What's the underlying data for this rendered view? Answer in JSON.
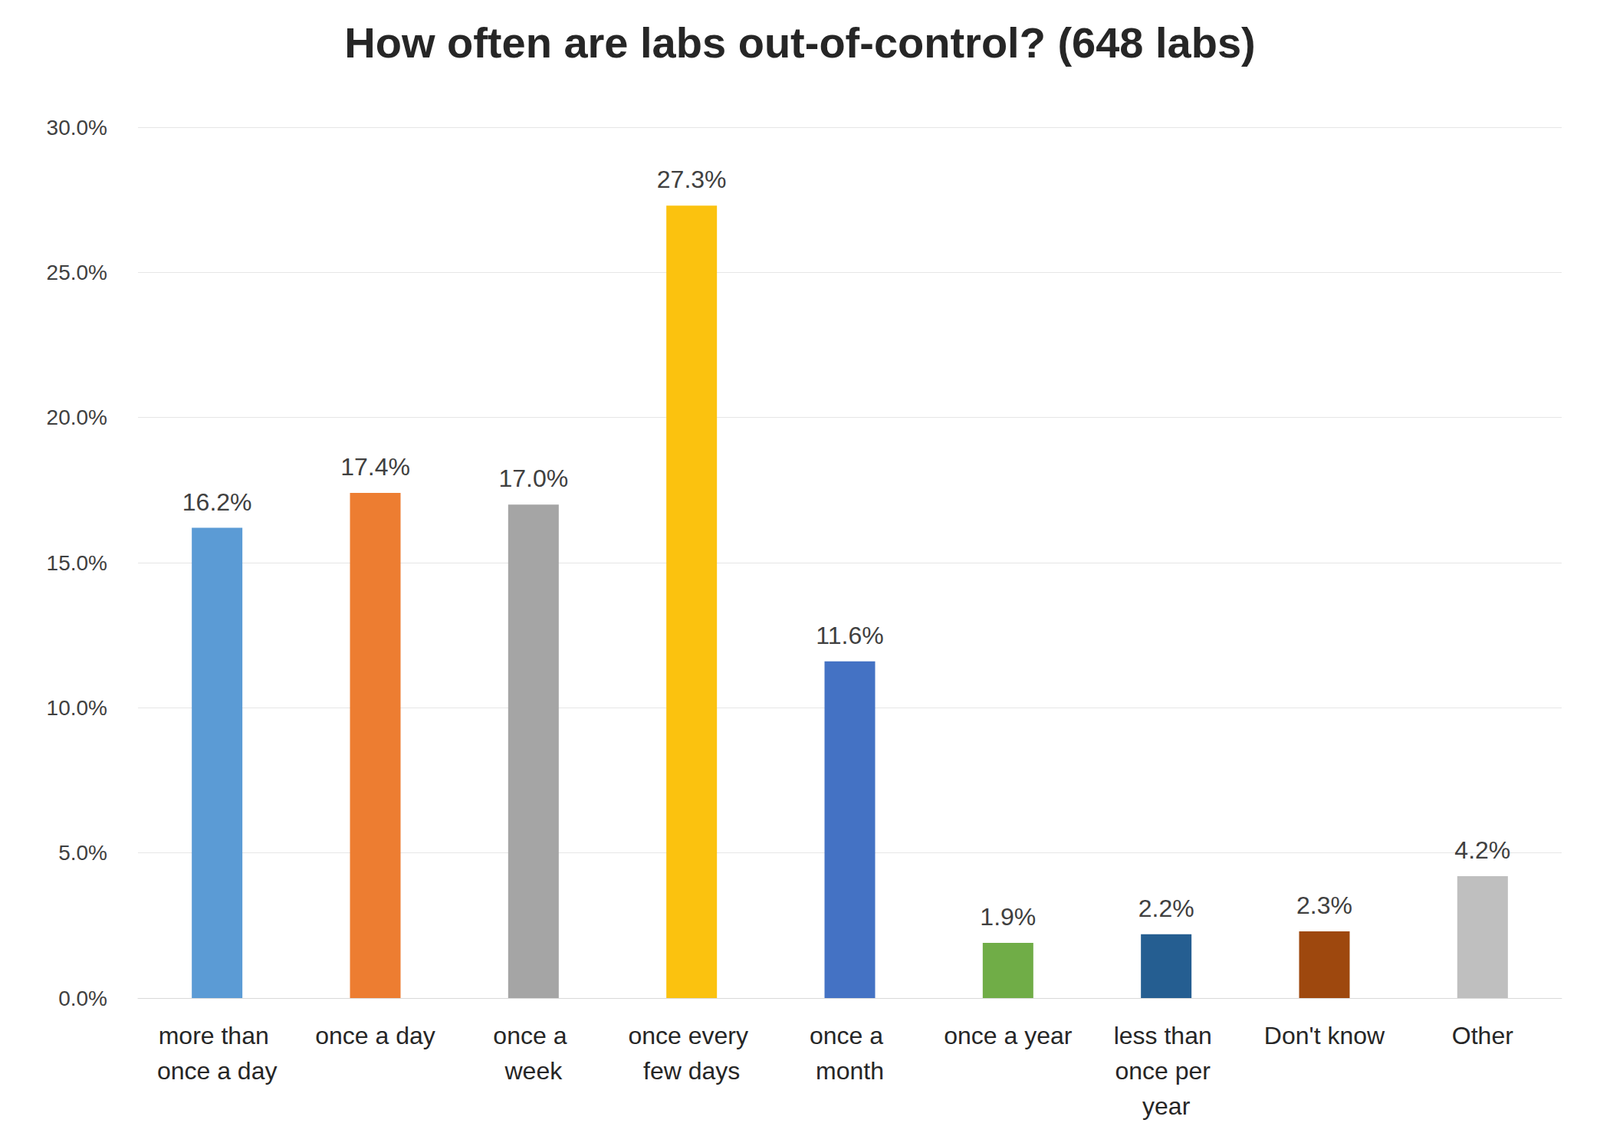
{
  "chart_data": {
    "type": "bar",
    "title": "How often are labs out-of-control? (648 labs)",
    "categories": [
      "more than once a day",
      "once a day",
      "once a week",
      "once every few days",
      "once a month",
      "once a year",
      "less than once per year",
      "Don't know",
      "Other"
    ],
    "values": [
      16.2,
      17.4,
      17.0,
      27.3,
      11.6,
      1.9,
      2.2,
      2.3,
      4.2
    ],
    "value_labels": [
      "16.2%",
      "17.4%",
      "17.0%",
      "27.3%",
      "11.6%",
      "1.9%",
      "2.2%",
      "2.3%",
      "4.2%"
    ],
    "colors": [
      "#5B9BD5",
      "#ED7D31",
      "#A5A5A5",
      "#FBC20F",
      "#4472C4",
      "#70AD47",
      "#255E91",
      "#9E480E",
      "#BFBFBF"
    ],
    "ylim": [
      0,
      30
    ],
    "yticks": [
      {
        "value": 0,
        "label": "0.0%"
      },
      {
        "value": 5,
        "label": "5.0%"
      },
      {
        "value": 10,
        "label": "10.0%"
      },
      {
        "value": 15,
        "label": "15.0%"
      },
      {
        "value": 20,
        "label": "20.0%"
      },
      {
        "value": 25,
        "label": "25.0%"
      },
      {
        "value": 30,
        "label": "30.0%"
      }
    ],
    "grid": true,
    "data_labels": true
  }
}
